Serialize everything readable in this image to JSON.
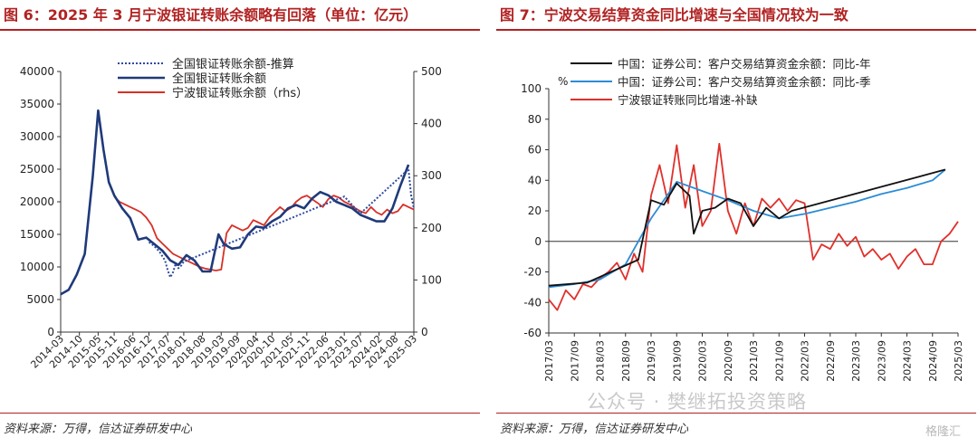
{
  "left": {
    "title": "图 6：2025 年 3 月宁波银证转账余额略有回落（单位：亿元）",
    "source": "资料来源：万得，信达证券研发中心"
  },
  "right": {
    "title": "图 7：宁波交易结算资金同比增速与全国情况较为一致",
    "source": "资料来源：万得，信达证券研发中心"
  },
  "watermark": "公众号 · 樊继拓投资策略",
  "logo": "格隆汇",
  "chart_data": [
    {
      "type": "line",
      "y_ticks": [
        "0",
        "5000",
        "10000",
        "15000",
        "20000",
        "25000",
        "30000",
        "35000",
        "40000"
      ],
      "y2_ticks": [
        "0",
        "100",
        "200",
        "300",
        "400",
        "500"
      ],
      "ylim": [
        0,
        40000
      ],
      "y2lim": [
        0,
        500
      ],
      "x_ticks": [
        "2014-03",
        "2014-10",
        "2015-05",
        "2015-11",
        "2016-06",
        "2016-12",
        "2017-07",
        "2018-01",
        "2018-08",
        "2019-03",
        "2019-09",
        "2020-04",
        "2020-10",
        "2021-05",
        "2021-11",
        "2022-06",
        "2023-01",
        "2023-07",
        "2024-02",
        "2024-08",
        "2025-03"
      ],
      "legend": "top-center",
      "series": [
        {
          "name": "全国银证转账余额-推算",
          "axis": "left",
          "style": "dotted",
          "color": "#2e4a9e",
          "x": [
            "2016-12",
            "2017-02",
            "2017-04",
            "2017-06",
            "2017-07",
            "2017-08",
            "2017-09",
            "2017-10",
            "2017-11",
            "2017-12",
            "2018-01",
            "2023-01",
            "2023-04",
            "2023-07",
            "2025-01",
            "2025-02",
            "2025-03"
          ],
          "values": [
            13800,
            13200,
            12300,
            11000,
            9500,
            8400,
            9200,
            10500,
            9800,
            10200,
            10800,
            20800,
            19500,
            18200,
            25000,
            21000,
            19000
          ]
        },
        {
          "name": "全国银证转账余额",
          "axis": "left",
          "style": "solid",
          "color": "#1f3a7a",
          "x": [
            "2014-03",
            "2014-06",
            "2014-09",
            "2014-12",
            "2015-03",
            "2015-05",
            "2015-07",
            "2015-09",
            "2015-11",
            "2016-02",
            "2016-05",
            "2016-08",
            "2016-11",
            "2017-02",
            "2017-05",
            "2017-08",
            "2017-11",
            "2018-02",
            "2018-05",
            "2018-08",
            "2018-11",
            "2019-02",
            "2019-04",
            "2019-07",
            "2019-10",
            "2020-01",
            "2020-04",
            "2020-07",
            "2020-10",
            "2021-01",
            "2021-04",
            "2021-07",
            "2021-10",
            "2022-01",
            "2022-04",
            "2022-07",
            "2022-10",
            "2023-01",
            "2023-04",
            "2023-07",
            "2023-10",
            "2024-01",
            "2024-04",
            "2024-07",
            "2024-10",
            "2025-01"
          ],
          "values": [
            5800,
            6500,
            8800,
            12000,
            24000,
            34000,
            28000,
            23000,
            21000,
            19000,
            17500,
            14200,
            14500,
            13500,
            12500,
            11000,
            10300,
            11800,
            11000,
            9300,
            9300,
            15000,
            13500,
            12800,
            13000,
            15000,
            16200,
            16000,
            17000,
            17700,
            19000,
            19500,
            19000,
            20500,
            21500,
            21000,
            20000,
            19500,
            19000,
            18000,
            17500,
            17000,
            17000,
            19000,
            22500,
            25700
          ]
        },
        {
          "name": "宁波银证转账余额（rhs）",
          "axis": "right",
          "style": "solid",
          "color": "#d73027",
          "x": [
            "2015-11",
            "2016-01",
            "2016-03",
            "2016-05",
            "2016-07",
            "2016-09",
            "2016-11",
            "2017-01",
            "2017-03",
            "2017-05",
            "2017-07",
            "2017-09",
            "2017-11",
            "2018-01",
            "2018-03",
            "2018-05",
            "2018-07",
            "2018-09",
            "2018-11",
            "2019-01",
            "2019-03",
            "2019-05",
            "2019-07",
            "2019-09",
            "2019-11",
            "2020-01",
            "2020-03",
            "2020-05",
            "2020-07",
            "2020-09",
            "2020-11",
            "2021-01",
            "2021-03",
            "2021-05",
            "2021-07",
            "2021-09",
            "2021-11",
            "2022-01",
            "2022-03",
            "2022-05",
            "2022-07",
            "2022-09",
            "2022-11",
            "2023-01",
            "2023-03",
            "2023-05",
            "2023-07",
            "2023-09",
            "2023-11",
            "2024-01",
            "2024-03",
            "2024-05",
            "2024-07",
            "2024-09",
            "2024-11",
            "2025-01",
            "2025-03"
          ],
          "values": [
            260,
            250,
            245,
            240,
            235,
            230,
            220,
            205,
            180,
            170,
            160,
            150,
            145,
            140,
            135,
            130,
            125,
            122,
            120,
            118,
            120,
            190,
            205,
            200,
            195,
            200,
            215,
            210,
            205,
            220,
            230,
            240,
            232,
            238,
            250,
            258,
            262,
            255,
            248,
            240,
            255,
            262,
            258,
            250,
            245,
            238,
            232,
            228,
            240,
            230,
            225,
            235,
            228,
            232,
            245,
            240,
            235
          ]
        }
      ]
    },
    {
      "type": "line",
      "unit_label": "%",
      "y_ticks": [
        "-60",
        "-40",
        "-20",
        "0",
        "20",
        "40",
        "60",
        "80",
        "100"
      ],
      "ylim": [
        -60,
        100
      ],
      "x_ticks": [
        "2017/03",
        "2017/09",
        "2018/03",
        "2018/09",
        "2019/03",
        "2019/09",
        "2020/03",
        "2020/09",
        "2021/03",
        "2021/09",
        "2022/03",
        "2022/09",
        "2023/03",
        "2023/09",
        "2024/03",
        "2024/09",
        "2025/03"
      ],
      "legend": "top-left",
      "series": [
        {
          "name": "中国：证券公司：客户交易结算资金余额：同比-年",
          "color": "#111111",
          "x": [
            "2017/03",
            "2017/12",
            "2018/12",
            "2019/03",
            "2019/06",
            "2019/09",
            "2019/12",
            "2020/01",
            "2020/03",
            "2020/06",
            "2020/09",
            "2020/12",
            "2021/03",
            "2021/06",
            "2021/09",
            "2021/12",
            "2024/12"
          ],
          "values": [
            -29,
            -27,
            -12,
            27,
            24,
            38,
            30,
            5,
            20,
            22,
            28,
            25,
            10,
            22,
            15,
            20,
            47
          ]
        },
        {
          "name": "中国：证券公司：客户交易结算资金余额：同比-季",
          "color": "#2b8cd6",
          "x": [
            "2017/03",
            "2017/09",
            "2018/03",
            "2018/09",
            "2019/03",
            "2019/09",
            "2020/03",
            "2020/09",
            "2021/03",
            "2021/09",
            "2022/03",
            "2022/09",
            "2023/03",
            "2023/09",
            "2024/03",
            "2024/09",
            "2024/12"
          ],
          "values": [
            -30,
            -28,
            -25,
            -15,
            15,
            39,
            33,
            27,
            20,
            15,
            18,
            22,
            26,
            31,
            35,
            40,
            47
          ]
        },
        {
          "name": "宁波银证转账同比增速-补缺",
          "color": "#e0302b",
          "x": [
            "2017/03",
            "2017/05",
            "2017/07",
            "2017/09",
            "2017/11",
            "2018/01",
            "2018/03",
            "2018/05",
            "2018/07",
            "2018/09",
            "2018/11",
            "2019/01",
            "2019/03",
            "2019/05",
            "2019/07",
            "2019/09",
            "2019/11",
            "2020/01",
            "2020/03",
            "2020/05",
            "2020/07",
            "2020/09",
            "2020/11",
            "2021/01",
            "2021/03",
            "2021/05",
            "2021/07",
            "2021/09",
            "2021/11",
            "2022/01",
            "2022/03",
            "2022/05",
            "2022/07",
            "2022/09",
            "2022/11",
            "2023/01",
            "2023/03",
            "2023/05",
            "2023/07",
            "2023/09",
            "2023/11",
            "2024/01",
            "2024/03",
            "2024/05",
            "2024/07",
            "2024/09",
            "2024/11",
            "2025/01",
            "2025/03"
          ],
          "values": [
            -38,
            -45,
            -32,
            -38,
            -28,
            -30,
            -24,
            -20,
            -14,
            -25,
            -8,
            -20,
            30,
            50,
            25,
            63,
            22,
            50,
            10,
            20,
            64,
            20,
            5,
            25,
            10,
            28,
            22,
            28,
            20,
            27,
            25,
            -12,
            -2,
            -5,
            5,
            -3,
            3,
            -10,
            -5,
            -12,
            -8,
            -18,
            -10,
            -5,
            -15,
            -15,
            0,
            5,
            13
          ]
        }
      ]
    }
  ]
}
